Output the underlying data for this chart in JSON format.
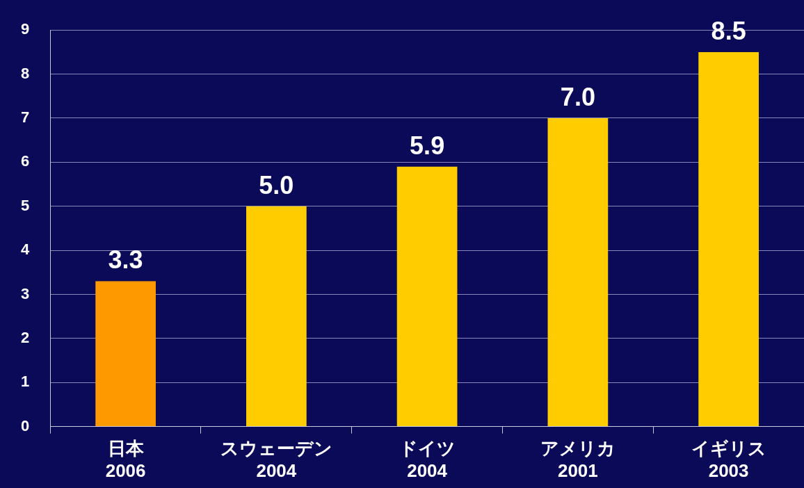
{
  "chart_data": {
    "type": "bar",
    "categories": [
      "日本\n2006",
      "スウェーデン\n2004",
      "ドイツ\n2004",
      "アメリカ\n2001",
      "イギリス\n2003"
    ],
    "values": [
      3.3,
      5.0,
      5.9,
      7.0,
      8.5
    ],
    "colors": [
      "#ff9900",
      "#ffcc00",
      "#ffcc00",
      "#ffcc00",
      "#ffcc00"
    ],
    "value_labels": [
      "3.3",
      "5.0",
      "5.9",
      "7.0",
      "8.5"
    ],
    "ylim": [
      0,
      9
    ],
    "yticks": [
      0,
      1,
      2,
      3,
      4,
      5,
      6,
      7,
      8,
      9
    ],
    "grid": "y",
    "legend": false
  }
}
